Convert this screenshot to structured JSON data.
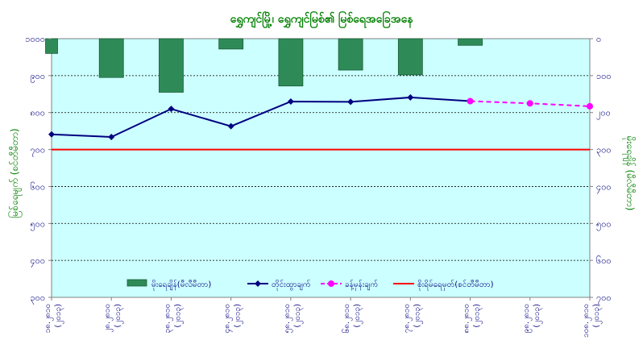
{
  "chart_data": {
    "type": "bar+line",
    "title": "ရွှေကျင်မြို့၊ ရွှေကျင်မြစ်၏ မြစ်ရေအခြေအနေ",
    "ylabel_left": "မြစ်ရေမျက် (စင်တီမီတာ)",
    "ylabel_right": "မိုးရေချိန် (မီလီမီတာ)",
    "left_axis": {
      "min": 300,
      "max": 1000,
      "ticks": [
        "၁၀၀၀",
        "၉၀၀",
        "၈၀၀",
        "၇၀၀",
        "၆၀၀",
        "၅၀၀",
        "၄၀၀",
        "၃၀၀"
      ]
    },
    "right_axis": {
      "min": 0,
      "max": 700,
      "reversed": true,
      "ticks": [
        "၀",
        "၁၀၀",
        "၂၀၀",
        "၃၀၀",
        "၄၀၀",
        "၅၀၀",
        "၆၀၀",
        "၇၀၀"
      ]
    },
    "categories": [
      {
        "date": "၁၈.၂၈၁၀",
        "year": "(၂၀၁၃)"
      },
      {
        "date": "၂၈.၂၈၁၀",
        "year": "(၂၀၁၃)"
      },
      {
        "date": "၃၈.၂၈၁၀",
        "year": "(၂၀၁၃)"
      },
      {
        "date": "၄၈.၂၈၁၀",
        "year": "(၂၀၁၃)"
      },
      {
        "date": "၅၈.၂၈၁၀",
        "year": "(၂၀၁၃)"
      },
      {
        "date": "၆၈.၂၈၁၀",
        "year": "(၂၀၁၃)"
      },
      {
        "date": "၇၈.၂၈၁၀",
        "year": "(၂၀၁၃)"
      },
      {
        "date": "၈၈.၂၈၁၀",
        "year": "(၂၀၁၃)"
      },
      {
        "date": "၉၈.၂၈၁၀",
        "year": "(၂၀၁၃)"
      },
      {
        "date": "၁၀၈.၂၈၁၀",
        "year": "(၂၀၁၃)"
      }
    ],
    "series": [
      {
        "name": "မိုးရေချိန်(မီလီမီတာ)",
        "kind": "bar",
        "axis": "right",
        "color": "#2e8b57",
        "values": [
          40,
          105,
          145,
          28,
          128,
          85,
          98,
          18,
          null,
          null
        ]
      },
      {
        "name": "တိုင်းထွာချက်",
        "kind": "line",
        "axis": "left",
        "color": "#000080",
        "values": [
          741,
          734,
          810,
          763,
          830,
          829,
          841,
          831,
          null,
          null
        ]
      },
      {
        "name": "ခန့်မှန်းချက်",
        "kind": "line-dashed",
        "axis": "left",
        "color": "#ff00ff",
        "values": [
          null,
          null,
          null,
          null,
          null,
          null,
          null,
          831,
          825,
          817
        ]
      },
      {
        "name": "စိုးရိမ်ရေမှတ်(စင်တီမီတာ)",
        "kind": "hline",
        "axis": "left",
        "color": "#ff0000",
        "value": 700
      }
    ],
    "legend_position": "bottom-inside",
    "grid": true,
    "plot_bg": "#ccffff"
  }
}
